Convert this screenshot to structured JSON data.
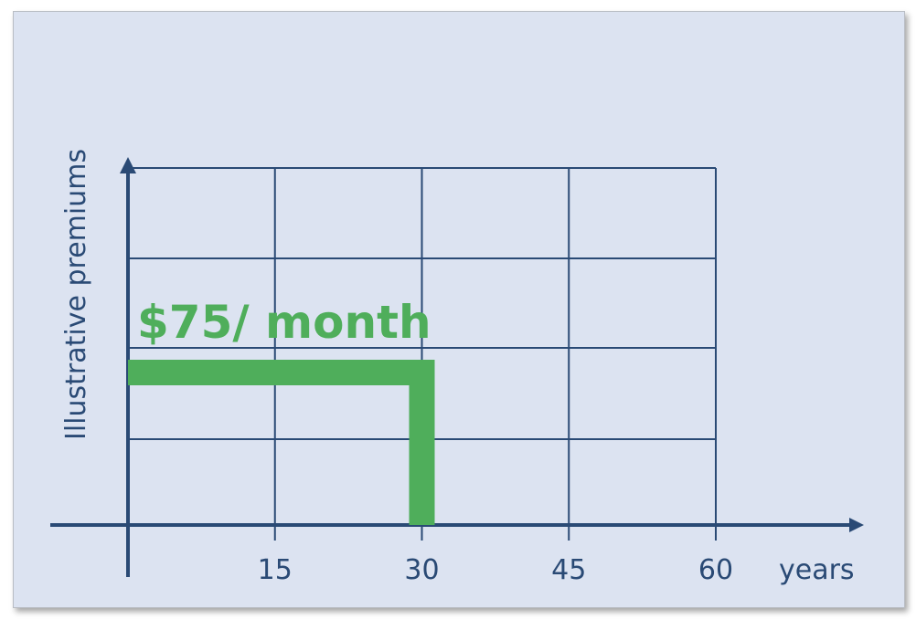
{
  "chart_data": {
    "type": "line",
    "title": "",
    "xlabel": "years",
    "ylabel": "Illustrative premiums",
    "x_ticks": [
      15,
      30,
      45,
      60
    ],
    "xlim": [
      0,
      60
    ],
    "grid": true,
    "series": [
      {
        "x": [
          0,
          30,
          30
        ],
        "y": [
          75,
          75,
          0
        ]
      }
    ],
    "annotations": [
      {
        "text": "$75/ month"
      }
    ],
    "colors": {
      "axis": "#2a4a75",
      "series": "#4fae5b",
      "background": "#dce3f1"
    }
  }
}
